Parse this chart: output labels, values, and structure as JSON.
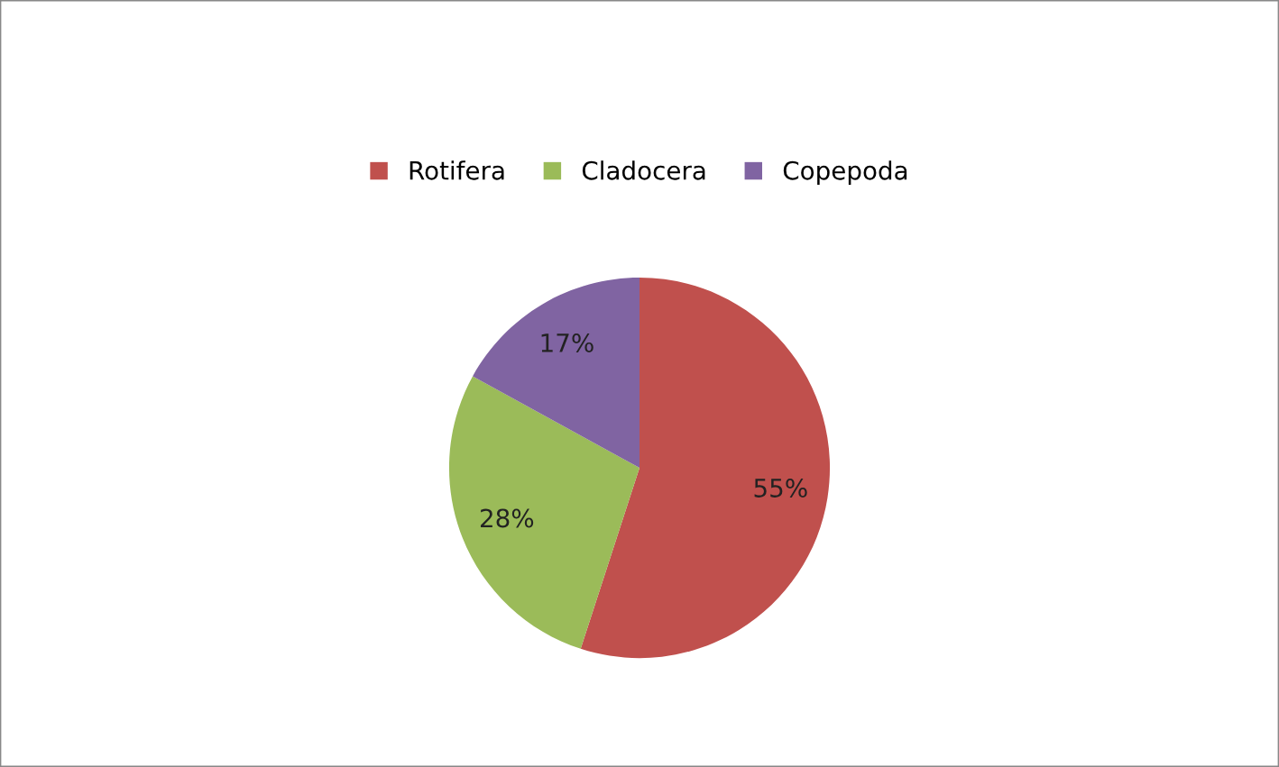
{
  "chart_data": {
    "type": "pie",
    "categories": [
      "Rotifera",
      "Cladocera",
      "Copepoda"
    ],
    "values": [
      55,
      28,
      17
    ],
    "colors": [
      "#c0504d",
      "#9bbb59",
      "#8064a2"
    ],
    "value_labels": [
      "55%",
      "28%",
      "17%"
    ],
    "legend": "top"
  }
}
